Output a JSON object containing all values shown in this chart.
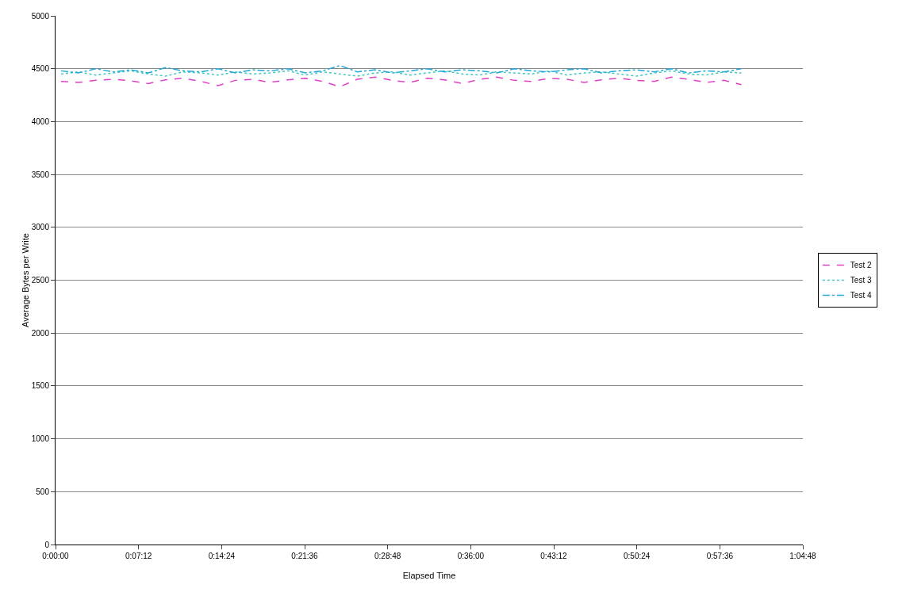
{
  "chart_data": {
    "type": "line",
    "xlabel": "Elapsed Time",
    "ylabel": "Average Bytes per Write",
    "x": [
      0.008,
      0.033,
      0.058,
      0.084,
      0.109,
      0.134,
      0.159,
      0.184,
      0.21,
      0.235,
      0.26,
      0.285,
      0.31,
      0.336,
      0.361,
      0.386,
      0.411,
      0.436,
      0.462,
      0.487,
      0.512,
      0.537,
      0.562,
      0.588,
      0.613,
      0.638,
      0.663,
      0.688,
      0.714,
      0.739,
      0.764,
      0.789,
      0.814,
      0.84,
      0.865,
      0.89,
      0.915,
      0.94,
      0.966,
      0.991
    ],
    "series": [
      {
        "name": "Test 2",
        "color": "#e040c8",
        "line_style": "dashed",
        "values": [
          4380,
          4370,
          4390,
          4400,
          4385,
          4360,
          4395,
          4410,
          4380,
          4340,
          4390,
          4400,
          4370,
          4395,
          4410,
          4380,
          4330,
          4400,
          4420,
          4390,
          4370,
          4410,
          4395,
          4360,
          4400,
          4420,
          4390,
          4380,
          4410,
          4400,
          4370,
          4395,
          4410,
          4390,
          4380,
          4420,
          4400,
          4370,
          4390,
          4350
        ]
      },
      {
        "name": "Test 3",
        "color": "#40c8c0",
        "line_style": "dotted",
        "values": [
          4450,
          4470,
          4440,
          4460,
          4480,
          4450,
          4430,
          4470,
          4460,
          4440,
          4470,
          4450,
          4460,
          4480,
          4440,
          4470,
          4450,
          4430,
          4460,
          4470,
          4440,
          4460,
          4480,
          4450,
          4440,
          4470,
          4460,
          4450,
          4480,
          4440,
          4460,
          4470,
          4450,
          4430,
          4460,
          4480,
          4450,
          4440,
          4470,
          4460
        ]
      },
      {
        "name": "Test 4",
        "color": "#20a8d8",
        "line_style": "dashdot",
        "values": [
          4480,
          4460,
          4500,
          4470,
          4490,
          4460,
          4510,
          4480,
          4470,
          4500,
          4460,
          4490,
          4480,
          4500,
          4460,
          4480,
          4530,
          4470,
          4490,
          4460,
          4480,
          4500,
          4470,
          4490,
          4480,
          4460,
          4500,
          4480,
          4470,
          4490,
          4500,
          4460,
          4480,
          4490,
          4470,
          4500,
          4460,
          4480,
          4470,
          4500
        ]
      }
    ],
    "xlim": [
      0,
      1.08
    ],
    "xticks": [
      {
        "value": 0,
        "label": "0:00:00"
      },
      {
        "value": 0.12,
        "label": "0:07:12"
      },
      {
        "value": 0.24,
        "label": "0:14:24"
      },
      {
        "value": 0.36,
        "label": "0:21:36"
      },
      {
        "value": 0.48,
        "label": "0:28:48"
      },
      {
        "value": 0.6,
        "label": "0:36:00"
      },
      {
        "value": 0.72,
        "label": "0:43:12"
      },
      {
        "value": 0.84,
        "label": "0:50:24"
      },
      {
        "value": 0.96,
        "label": "0:57:36"
      },
      {
        "value": 1.08,
        "label": "1:04:48"
      }
    ],
    "ylim": [
      0,
      5000
    ],
    "yticks": [
      0,
      500,
      1000,
      1500,
      2000,
      2500,
      3000,
      3500,
      4000,
      4500,
      5000
    ],
    "grid": "y",
    "legend": "right",
    "marker": "none"
  }
}
